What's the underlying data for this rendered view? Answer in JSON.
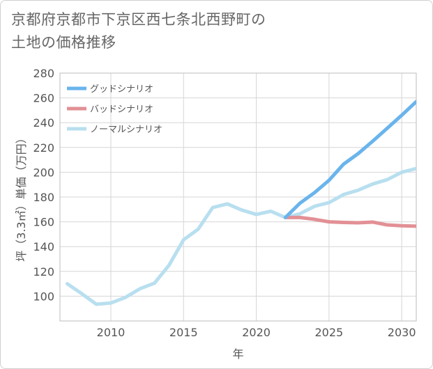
{
  "title_lines": [
    "京都府京都市下京区西七条北西野町の",
    "土地の価格推移"
  ],
  "chart_data": {
    "type": "line",
    "title": "京都府京都市下京区西七条北西野町の土地の価格推移",
    "xlabel": "年",
    "ylabel": "坪（3.3㎡）単価（万円）",
    "xlim": [
      2006.5,
      2031
    ],
    "ylim": [
      80,
      280
    ],
    "x_ticks": [
      2010,
      2015,
      2020,
      2025,
      2030
    ],
    "y_ticks": [
      100,
      120,
      140,
      160,
      180,
      200,
      220,
      240,
      260,
      280
    ],
    "grid": true,
    "legend_position": "top-left",
    "series": [
      {
        "name": "グッドシナリオ",
        "color": "#6ab4ec",
        "x": [
          2022,
          2023,
          2024,
          2025,
          2026,
          2027,
          2028,
          2029,
          2030,
          2031
        ],
        "y": [
          163.5,
          175,
          183.5,
          193.5,
          206.5,
          215,
          225,
          235.5,
          246,
          257
        ]
      },
      {
        "name": "バッドシナリオ",
        "color": "#e29095",
        "x": [
          2022,
          2023,
          2024,
          2025,
          2026,
          2027,
          2028,
          2029,
          2030,
          2031
        ],
        "y": [
          163.5,
          163.5,
          162,
          160,
          159.5,
          159.2,
          159.8,
          157.5,
          156.8,
          156.5
        ]
      },
      {
        "name": "ノーマルシナリオ",
        "color": "#b8dfef",
        "x": [
          2007,
          2008,
          2009,
          2010,
          2011,
          2012,
          2013,
          2014,
          2015,
          2016,
          2017,
          2018,
          2019,
          2020,
          2021,
          2022,
          2023,
          2024,
          2025,
          2026,
          2027,
          2028,
          2029,
          2030,
          2031
        ],
        "y": [
          110,
          102,
          93.5,
          94.5,
          99,
          106,
          110.5,
          125,
          145.5,
          154,
          171.5,
          174.5,
          169.5,
          166,
          168.5,
          163.5,
          166.5,
          172.5,
          175.5,
          182,
          185.5,
          190.5,
          194,
          200,
          203
        ]
      }
    ]
  }
}
